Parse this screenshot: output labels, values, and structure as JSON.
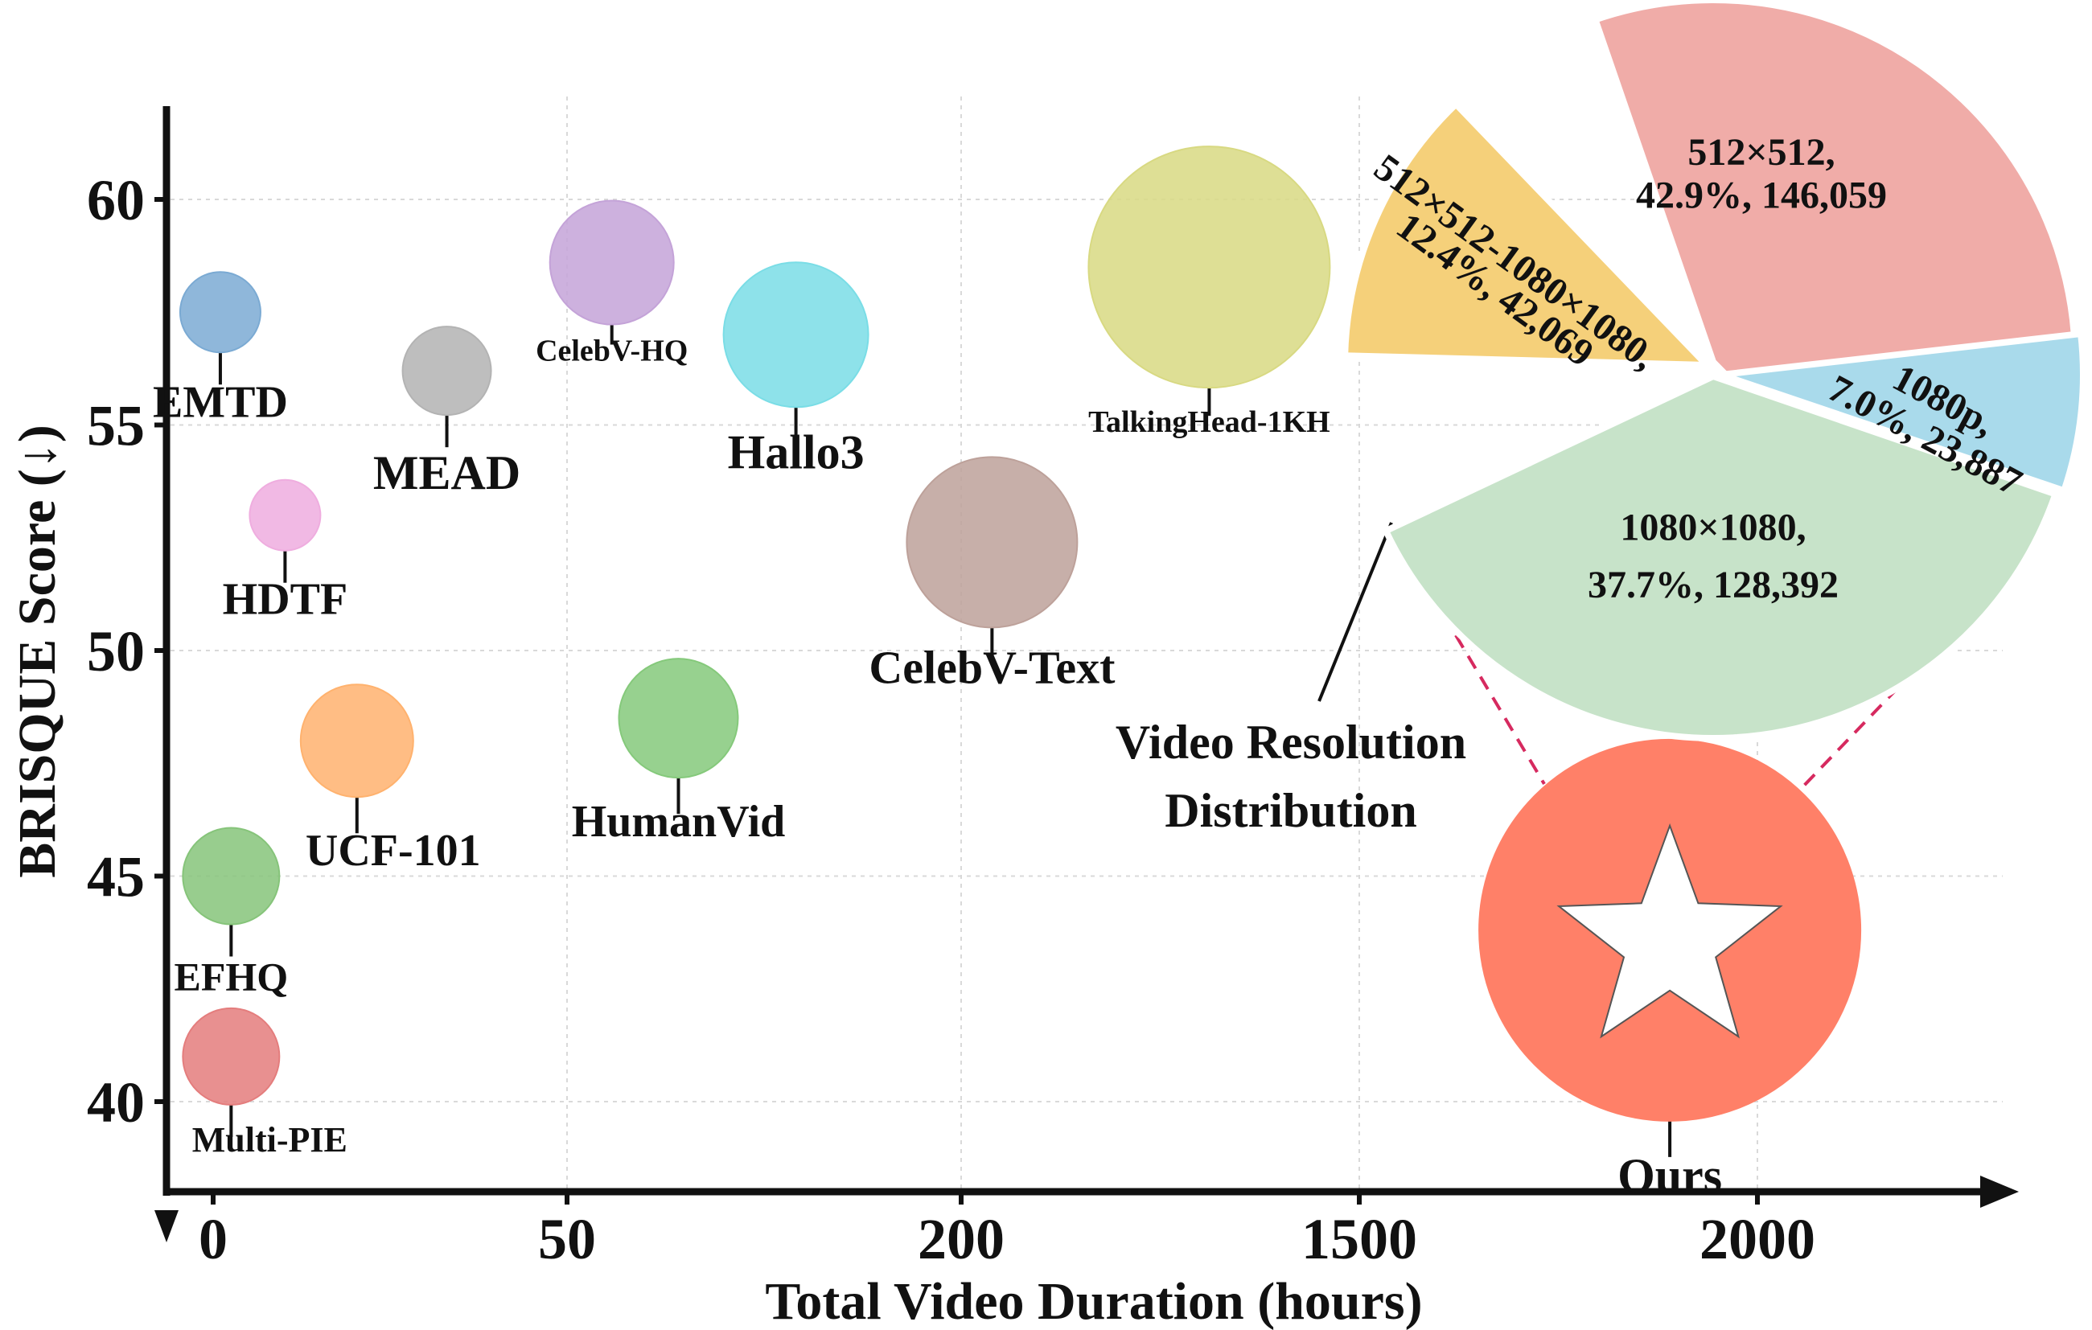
{
  "chart_data": {
    "type": "bubble-scatter",
    "xlabel": "Total Video Duration (hours)",
    "ylabel": "BRISQUE Score (↓)",
    "x_tick_labels": [
      "0",
      "50",
      "200",
      "1500",
      "2000"
    ],
    "y_ticks": [
      40,
      45,
      50,
      55,
      60
    ],
    "ylim": [
      39,
      62
    ],
    "grid": true,
    "series": [
      {
        "name": "EMTD",
        "x_index": 0.02,
        "y": 57.5,
        "color": "#7BAAD3"
      },
      {
        "name": "HDTF",
        "x_index": 0.2,
        "y": 53.0,
        "color": "#EFADDF"
      },
      {
        "name": "UCF-101",
        "x_index": 0.4,
        "y": 48.0,
        "color": "#FFB26E"
      },
      {
        "name": "EFHQ",
        "x_index": 0.05,
        "y": 45.0,
        "color": "#86C47A"
      },
      {
        "name": "Multi-PIE",
        "x_index": 0.05,
        "y": 41.0,
        "color": "#E47D7D"
      },
      {
        "name": "MEAD",
        "x_index": 0.65,
        "y": 56.2,
        "color": "#B3B3B3"
      },
      {
        "name": "CelebV-HQ",
        "x_index": 1.1,
        "y": 58.6,
        "color": "#C4A3D8"
      },
      {
        "name": "Hallo3",
        "x_index": 1.57,
        "y": 57.0,
        "color": "#7ADDE6"
      },
      {
        "name": "HumanVid",
        "x_index": 1.27,
        "y": 48.5,
        "color": "#85C97B"
      },
      {
        "name": "CelebV-Text",
        "x_index": 2.07,
        "y": 52.4,
        "color": "#BDA19A"
      },
      {
        "name": "TalkingHead-1KH",
        "x_index": 2.62,
        "y": 58.5,
        "color": "#D8D982"
      },
      {
        "name": "Ours",
        "x_index": 3.78,
        "y": 43.8,
        "color": "#FF8068"
      }
    ],
    "inset_pie": {
      "title": "Video Resolution Distribution",
      "slices": [
        {
          "label": "512×512,",
          "detail": "42.9%, 146,059",
          "percent": 42.9,
          "count": 146059,
          "color": "#F0ACA8"
        },
        {
          "label": "1080p,",
          "detail": "7.0%, 23,887",
          "percent": 7.0,
          "count": 23887,
          "color": "#A9DAEB"
        },
        {
          "label": "1080×1080,",
          "detail": "37.7%, 128,392",
          "percent": 37.7,
          "count": 128392,
          "color": "#C7E3C9"
        },
        {
          "label": "512×512-1080×1080,",
          "detail": "12.4%, 42,069",
          "percent": 12.4,
          "count": 42069,
          "color": "#F5D07A"
        }
      ]
    }
  }
}
